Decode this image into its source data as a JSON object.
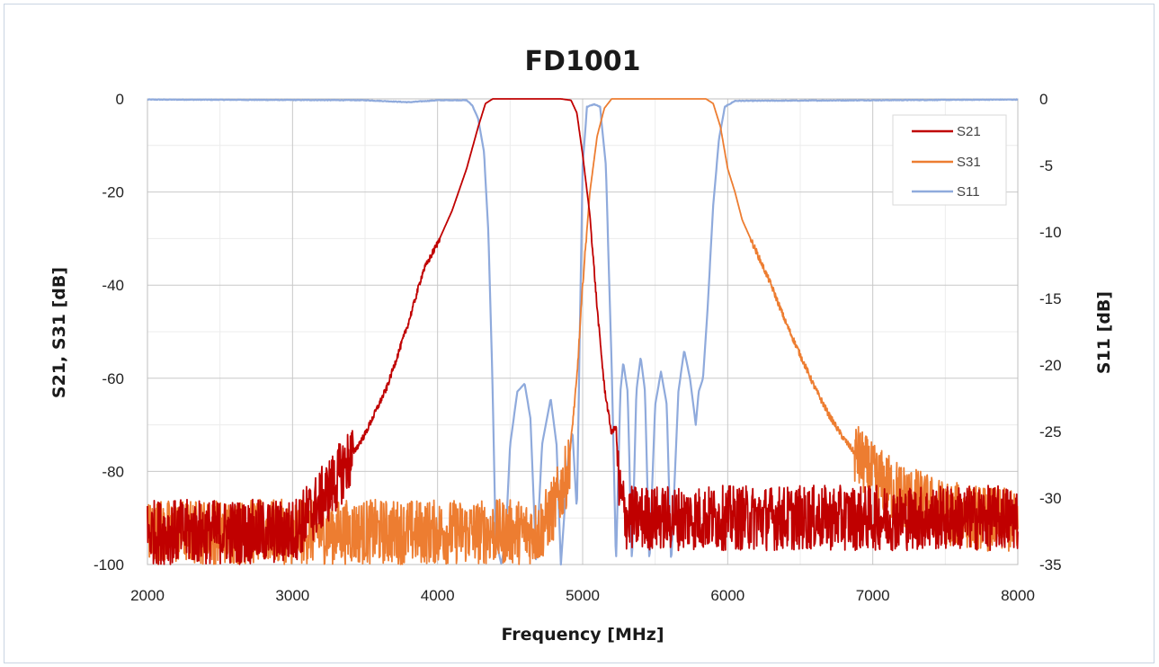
{
  "chart_data": {
    "type": "line",
    "title": "FD1001",
    "xlabel": "Frequency [MHz]",
    "ylabel_left": "S21, S31 [dB]",
    "ylabel_right": "S11 [dB]",
    "xlim": [
      2000,
      8000
    ],
    "ylim_left": [
      -100,
      0
    ],
    "ylim_right": [
      -35,
      0
    ],
    "x_ticks": [
      "2000",
      "3000",
      "4000",
      "5000",
      "6000",
      "7000",
      "8000"
    ],
    "y_ticks_left": [
      "0",
      "-20",
      "-40",
      "-60",
      "-80",
      "-100"
    ],
    "y_ticks_right": [
      "0",
      "-5",
      "-10",
      "-15",
      "-20",
      "-25",
      "-30",
      "-35"
    ],
    "grid": true,
    "legend_position": "top-right",
    "series": [
      {
        "name": "S21",
        "axis": "left",
        "color": "#c00000",
        "noise_floor_db": -93,
        "points": [
          [
            2000,
            -93
          ],
          [
            3000,
            -93
          ],
          [
            3150,
            -88
          ],
          [
            3300,
            -82
          ],
          [
            3500,
            -72
          ],
          [
            3650,
            -62
          ],
          [
            3800,
            -48
          ],
          [
            3900,
            -37
          ],
          [
            4000,
            -31
          ],
          [
            4100,
            -24
          ],
          [
            4200,
            -15
          ],
          [
            4280,
            -6
          ],
          [
            4330,
            -1
          ],
          [
            4380,
            0
          ],
          [
            4600,
            0
          ],
          [
            4850,
            0
          ],
          [
            4920,
            -0.3
          ],
          [
            4960,
            -3
          ],
          [
            5000,
            -12
          ],
          [
            5050,
            -25
          ],
          [
            5100,
            -45
          ],
          [
            5150,
            -62
          ],
          [
            5200,
            -72
          ],
          [
            5230,
            -70
          ],
          [
            5250,
            -84
          ],
          [
            5300,
            -90
          ],
          [
            8000,
            -90
          ]
        ]
      },
      {
        "name": "S31",
        "axis": "left",
        "color": "#ed7d31",
        "noise_floor_db": -93,
        "points": [
          [
            2000,
            -93
          ],
          [
            4700,
            -93
          ],
          [
            4800,
            -88
          ],
          [
            4900,
            -80
          ],
          [
            4960,
            -60
          ],
          [
            5000,
            -40
          ],
          [
            5050,
            -20
          ],
          [
            5100,
            -8
          ],
          [
            5150,
            -2
          ],
          [
            5200,
            0
          ],
          [
            5500,
            0
          ],
          [
            5850,
            0
          ],
          [
            5900,
            -1
          ],
          [
            5950,
            -6
          ],
          [
            6000,
            -15
          ],
          [
            6050,
            -20
          ],
          [
            6100,
            -26
          ],
          [
            6200,
            -33
          ],
          [
            6300,
            -40
          ],
          [
            6400,
            -48
          ],
          [
            6500,
            -55
          ],
          [
            6600,
            -62
          ],
          [
            6700,
            -68
          ],
          [
            6800,
            -73
          ],
          [
            6900,
            -77
          ],
          [
            7000,
            -81
          ],
          [
            7200,
            -85
          ],
          [
            7500,
            -89
          ],
          [
            8000,
            -91
          ]
        ]
      },
      {
        "name": "S11",
        "axis": "right",
        "color": "#8faadc",
        "points": [
          [
            2000,
            -0.05
          ],
          [
            3500,
            -0.1
          ],
          [
            3800,
            -0.25
          ],
          [
            4000,
            -0.1
          ],
          [
            4200,
            -0.1
          ],
          [
            4240,
            -0.5
          ],
          [
            4280,
            -1.5
          ],
          [
            4320,
            -4
          ],
          [
            4350,
            -10
          ],
          [
            4380,
            -22
          ],
          [
            4400,
            -33
          ],
          [
            4440,
            -35
          ],
          [
            4470,
            -33
          ],
          [
            4500,
            -26
          ],
          [
            4550,
            -22
          ],
          [
            4600,
            -21.4
          ],
          [
            4640,
            -24
          ],
          [
            4680,
            -35
          ],
          [
            4720,
            -26
          ],
          [
            4780,
            -22.5
          ],
          [
            4820,
            -26
          ],
          [
            4850,
            -35
          ],
          [
            4900,
            -27
          ],
          [
            4930,
            -25
          ],
          [
            4960,
            -31
          ],
          [
            5000,
            -5
          ],
          [
            5030,
            -0.6
          ],
          [
            5080,
            -0.4
          ],
          [
            5120,
            -0.6
          ],
          [
            5160,
            -5
          ],
          [
            5200,
            -20
          ],
          [
            5230,
            -35
          ],
          [
            5260,
            -22
          ],
          [
            5280,
            -19.8
          ],
          [
            5310,
            -22
          ],
          [
            5340,
            -35
          ],
          [
            5370,
            -22
          ],
          [
            5400,
            -19.4
          ],
          [
            5430,
            -22
          ],
          [
            5460,
            -35
          ],
          [
            5500,
            -23
          ],
          [
            5540,
            -20.5
          ],
          [
            5580,
            -23
          ],
          [
            5610,
            -35
          ],
          [
            5660,
            -22
          ],
          [
            5700,
            -18.9
          ],
          [
            5740,
            -21
          ],
          [
            5780,
            -24.5
          ],
          [
            5800,
            -22
          ],
          [
            5830,
            -21
          ],
          [
            5860,
            -16
          ],
          [
            5900,
            -8
          ],
          [
            5940,
            -3
          ],
          [
            5980,
            -0.6
          ],
          [
            6050,
            -0.15
          ],
          [
            8000,
            -0.05
          ]
        ]
      }
    ]
  }
}
